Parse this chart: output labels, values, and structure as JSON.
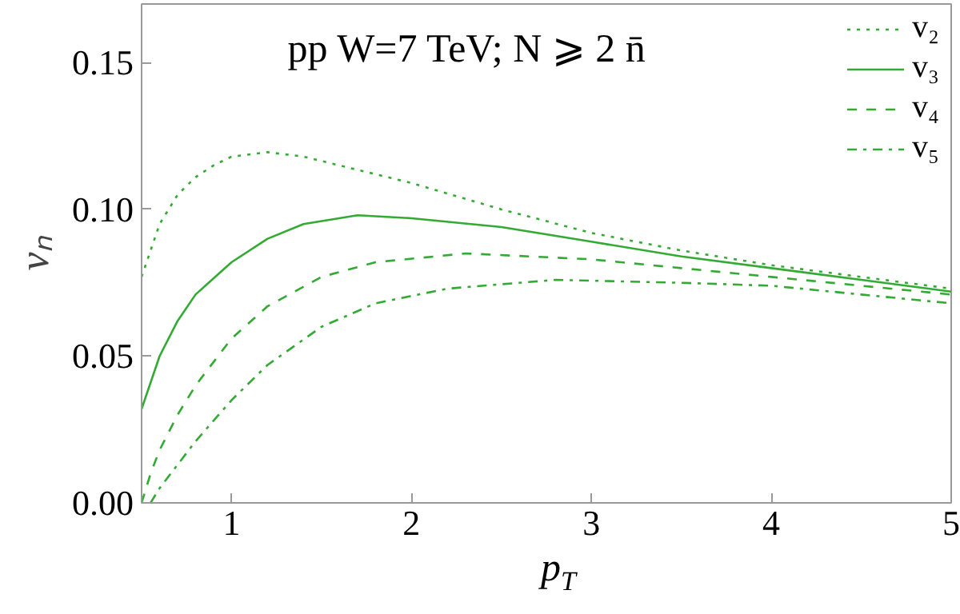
{
  "chart_data": {
    "type": "line",
    "title": "pp W=7 TeV; N ⩾ 2 n̄",
    "xlabel": "p$_{T}$",
    "ylabel": "vₙ",
    "xlim": [
      0.5,
      5
    ],
    "ylim": [
      0,
      0.17
    ],
    "xticks": [
      1,
      2,
      3,
      4,
      5
    ],
    "yticks": [
      {
        "value": 0,
        "label": "0.00"
      },
      0.05,
      {
        "value": 0.1,
        "label": "0.10"
      },
      0.15
    ],
    "grid": false,
    "legend": "top right",
    "series": [
      {
        "name": "v₂",
        "color": "#33aa33",
        "line_style": "dotted",
        "x": [
          0.5,
          0.6,
          0.7,
          0.8,
          0.9,
          1.0,
          1.2,
          1.4,
          1.6,
          2.0,
          2.5,
          3.0,
          3.5,
          4.0,
          4.5,
          5.0
        ],
        "values": [
          0.077,
          0.095,
          0.105,
          0.111,
          0.115,
          0.118,
          0.1195,
          0.118,
          0.115,
          0.109,
          0.1,
          0.092,
          0.086,
          0.081,
          0.077,
          0.073
        ]
      },
      {
        "name": "v₃",
        "color": "#33aa33",
        "line_style": "solid",
        "x": [
          0.5,
          0.6,
          0.7,
          0.8,
          1.0,
          1.2,
          1.4,
          1.7,
          2.0,
          2.5,
          3.0,
          3.5,
          4.0,
          4.5,
          5.0
        ],
        "values": [
          0.032,
          0.05,
          0.062,
          0.071,
          0.082,
          0.09,
          0.095,
          0.098,
          0.097,
          0.094,
          0.089,
          0.084,
          0.08,
          0.076,
          0.072
        ]
      },
      {
        "name": "v₄",
        "color": "#33aa33",
        "line_style": "dashed",
        "x": [
          0.5,
          0.55,
          0.6,
          0.7,
          0.8,
          1.0,
          1.2,
          1.5,
          1.8,
          2.3,
          3.0,
          3.5,
          4.0,
          4.5,
          5.0
        ],
        "values": [
          0.0,
          0.01,
          0.018,
          0.03,
          0.04,
          0.056,
          0.067,
          0.077,
          0.082,
          0.085,
          0.083,
          0.08,
          0.077,
          0.074,
          0.071
        ]
      },
      {
        "name": "v₅",
        "color": "#33aa33",
        "line_style": "dashdot",
        "x": [
          0.55,
          0.6,
          0.7,
          0.8,
          1.0,
          1.2,
          1.5,
          1.8,
          2.2,
          2.8,
          3.5,
          4.0,
          4.5,
          5.0
        ],
        "values": [
          0.0,
          0.005,
          0.013,
          0.021,
          0.035,
          0.047,
          0.06,
          0.068,
          0.073,
          0.076,
          0.075,
          0.074,
          0.071,
          0.068
        ]
      }
    ]
  }
}
